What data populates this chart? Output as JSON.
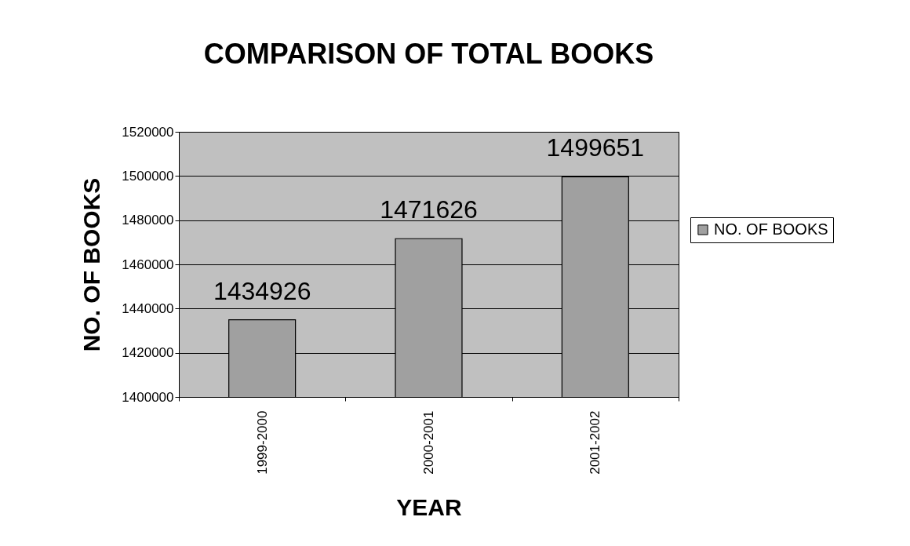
{
  "chart_data": {
    "type": "bar",
    "title": "COMPARISON OF TOTAL BOOKS",
    "xlabel": "YEAR",
    "ylabel": "NO. OF BOOKS",
    "categories": [
      "1999-2000",
      "2000-2001",
      "2001-2002"
    ],
    "series": [
      {
        "name": "NO. OF BOOKS",
        "color": "#a0a0a0",
        "values": [
          1434926,
          1471626,
          1499651
        ]
      }
    ],
    "ylim": [
      1400000,
      1520000
    ],
    "yticks": [
      1400000,
      1420000,
      1440000,
      1460000,
      1480000,
      1500000,
      1520000
    ],
    "grid": "y",
    "legend": "right",
    "data_labels": true
  }
}
